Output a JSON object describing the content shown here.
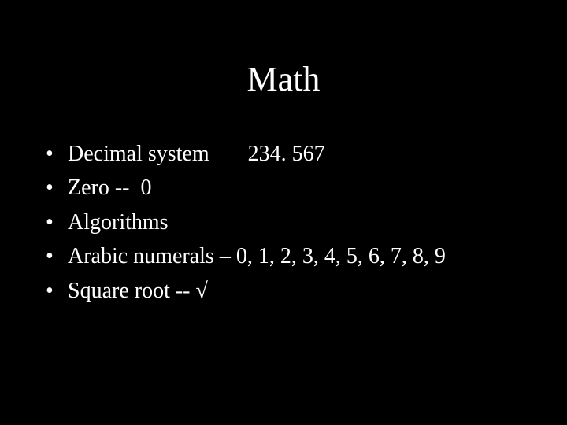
{
  "background_color": "#000000",
  "text_color": "#ffffff",
  "title": {
    "text": "Math",
    "fontsize": 44,
    "align": "center"
  },
  "bullets": {
    "marker": "•",
    "fontsize": 28,
    "items": [
      "Decimal system       234. 567",
      "Zero --  0",
      "Algorithms",
      "Arabic numerals – 0, 1, 2, 3, 4, 5, 6, 7, 8, 9",
      "Square root -- √"
    ]
  }
}
